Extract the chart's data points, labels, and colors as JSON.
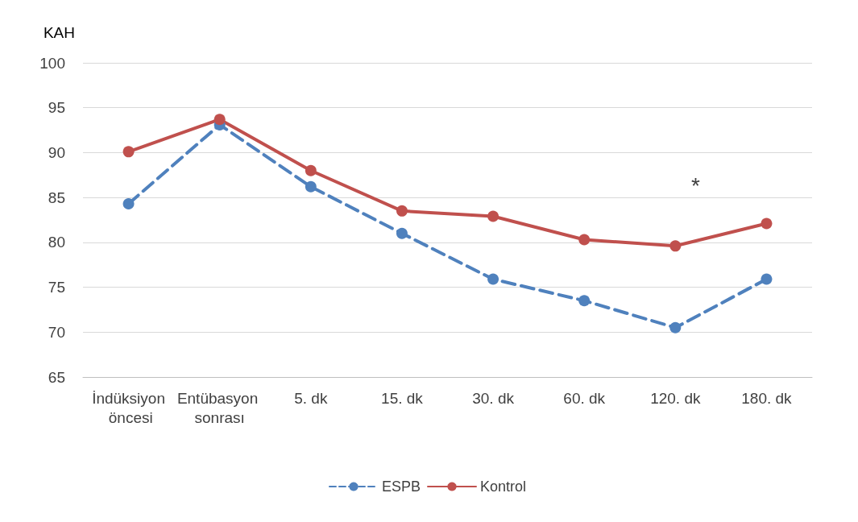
{
  "chart_data": {
    "type": "line",
    "ylabel": "KAH",
    "categories": [
      "İndüksiyon öncesi",
      "Entübasyon sonrası",
      "5. dk",
      "15. dk",
      "30. dk",
      "60. dk",
      "120. dk",
      "180. dk"
    ],
    "series": [
      {
        "name": "ESPB",
        "color": "#4f81bd",
        "line_style": "dashed",
        "values": [
          84.3,
          93.1,
          86.2,
          81.0,
          75.9,
          73.5,
          70.5,
          75.9
        ]
      },
      {
        "name": "Kontrol",
        "color": "#c0504d",
        "line_style": "solid",
        "values": [
          90.1,
          93.7,
          88.0,
          83.5,
          82.9,
          80.3,
          79.6,
          82.1
        ]
      }
    ],
    "ylim": [
      65,
      100
    ],
    "yticks": [
      65,
      70,
      75,
      80,
      85,
      90,
      95,
      100
    ],
    "grid": "y",
    "legend": "bottom",
    "marker": "circle",
    "annotations": [
      "*"
    ]
  }
}
